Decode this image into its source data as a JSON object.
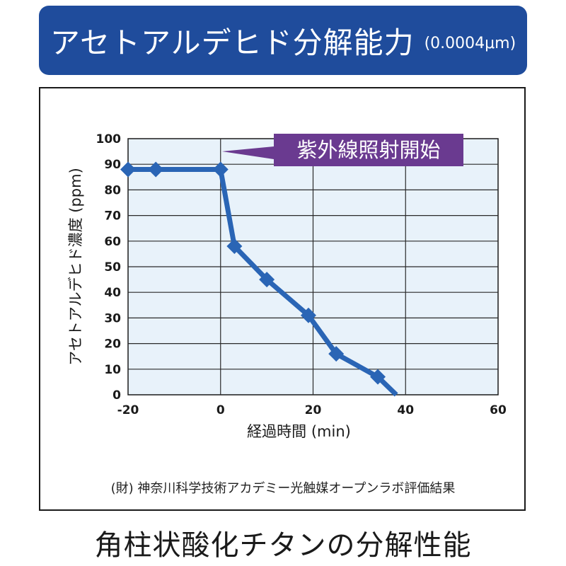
{
  "header": {
    "title": "アセトアルデヒド分解能力",
    "subtitle": "(0.0004μm)"
  },
  "source_note": "(財) 神奈川科学技術アカデミー光触媒オープンラボ評価結果",
  "caption": "角柱状酸化チタンの分解性能",
  "colors": {
    "header_bg": "#1f4c9c",
    "plot_bg": "#e8f2fa",
    "series": "#2a65b5",
    "callout": "#6a3a90"
  },
  "chart_data": {
    "type": "line",
    "title": "",
    "xlabel": "経過時間 (min)",
    "ylabel": "アセトアルデヒド濃度 (ppm)",
    "xlim": [
      -20,
      60
    ],
    "ylim": [
      0,
      100
    ],
    "x_ticks": [
      -20,
      0,
      20,
      40,
      60
    ],
    "y_ticks": [
      0,
      10,
      20,
      30,
      40,
      50,
      60,
      70,
      80,
      90,
      100
    ],
    "grid": true,
    "series": [
      {
        "x": [
          -20,
          -14,
          0,
          3,
          10,
          19,
          25,
          34,
          38
        ],
        "y": [
          88,
          88,
          88,
          58,
          45,
          31,
          16,
          7,
          0
        ],
        "markers": [
          true,
          true,
          true,
          true,
          true,
          true,
          true,
          true,
          false
        ]
      }
    ],
    "annotation": {
      "text": "紫外線照射開始",
      "x": 0
    }
  }
}
